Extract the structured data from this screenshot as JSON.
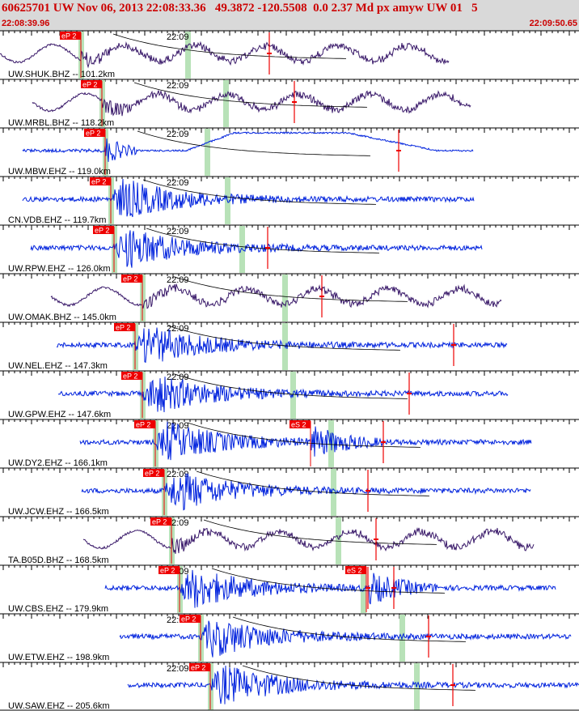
{
  "header": {
    "title": "60625701 UW Nov 06, 2013 22:08:33.36   49.3872 -120.5508  0.0 2.37 Md px amyw UW 01   5",
    "start_time": "22:08:39.96",
    "end_time": "22:09:50.65"
  },
  "colors": {
    "header_bg": "#d9d9d9",
    "header_text": "#cc0000",
    "trace_blue": "#0022dd",
    "trace_purple": "#3a1a6a",
    "pick_box": "#ee0000",
    "marker_green": "#b8e2b8",
    "pick_line": "#ee0000",
    "curve": "#000000"
  },
  "chart_data": {
    "type": "seismogram",
    "time_start": "22:08:39.96",
    "time_end": "22:09:50.65",
    "minute_label": "22:09",
    "grid": true,
    "traces": [
      {
        "label": "UW.SHUK.BHZ -- 101.2km",
        "color": "purple",
        "style": "wave",
        "data_start": 0,
        "data_end": 555,
        "p_pick": "eP 2",
        "p_time": 100,
        "green": [
          100,
          232
        ],
        "red_marks": [
          333
        ],
        "s_pick": null,
        "s_time": null
      },
      {
        "label": "UW.MRBL.BHZ -- 118.2km",
        "color": "purple",
        "style": "wave",
        "data_start": 40,
        "data_end": 582,
        "p_pick": "eP 2",
        "p_time": 126,
        "green": [
          126,
          279
        ],
        "red_marks": [
          364
        ],
        "s_pick": null,
        "s_time": null
      },
      {
        "label": "UW.MBW.EHZ -- 119.0km",
        "color": "blue",
        "style": "drift",
        "data_start": 28,
        "data_end": 585,
        "p_pick": "eP 2",
        "p_time": 130,
        "green": [
          130,
          256
        ],
        "red_marks": [
          493
        ],
        "s_pick": null,
        "s_time": null
      },
      {
        "label": "CN.VDB.EHZ -- 119.7km",
        "color": "blue",
        "style": "burst",
        "data_start": 28,
        "data_end": 586,
        "p_pick": "eP 2",
        "p_time": 137,
        "green": [
          137,
          281
        ],
        "red_marks": [],
        "s_pick": null,
        "s_time": null
      },
      {
        "label": "UW.RPW.EHZ -- 126.0km",
        "color": "blue",
        "style": "burst",
        "data_start": 38,
        "data_end": 596,
        "p_pick": "eP 2",
        "p_time": 141,
        "green": [
          141,
          299
        ],
        "red_marks": [
          331
        ],
        "s_pick": null,
        "s_time": null
      },
      {
        "label": "UW.OMAK.BHZ -- 145.0km",
        "color": "purple",
        "style": "wave",
        "data_start": 63,
        "data_end": 620,
        "p_pick": "eP 2",
        "p_time": 176,
        "green": [
          176,
          352
        ],
        "red_marks": [
          398
        ],
        "s_pick": null,
        "s_time": null
      },
      {
        "label": "UW.NEL.EHZ -- 147.3km",
        "color": "blue",
        "style": "burst",
        "data_start": 70,
        "data_end": 627,
        "p_pick": "eP 2",
        "p_time": 167,
        "green": [
          167,
          352
        ],
        "red_marks": [
          561
        ],
        "s_pick": null,
        "s_time": null
      },
      {
        "label": "UW.GPW.EHZ -- 147.6km",
        "color": "blue",
        "style": "burst",
        "data_start": 72,
        "data_end": 628,
        "p_pick": "eP 2",
        "p_time": 176,
        "green": [
          176,
          362
        ],
        "red_marks": [
          506
        ],
        "s_pick": null,
        "s_time": null
      },
      {
        "label": "UW.DY2.EHZ -- 166.1km",
        "color": "blue",
        "style": "burst2",
        "data_start": 99,
        "data_end": 657,
        "p_pick": "eP 2",
        "p_time": 192,
        "green": [
          192,
          409
        ],
        "red_marks": [
          474
        ],
        "s_pick": "eS 2",
        "s_time": 384
      },
      {
        "label": "UW.JCW.EHZ -- 166.5km",
        "color": "blue",
        "style": "burst",
        "data_start": 101,
        "data_end": 656,
        "p_pick": "eP 2",
        "p_time": 203,
        "green": [
          203,
          412
        ],
        "red_marks": [
          455
        ],
        "s_pick": null,
        "s_time": null
      },
      {
        "label": "TA.B05D.BHZ -- 168.5km",
        "color": "purple",
        "style": "wave",
        "data_start": 103,
        "data_end": 660,
        "p_pick": "eP 2",
        "p_time": 212,
        "green": [
          212,
          418
        ],
        "red_marks": [
          465
        ],
        "s_pick": null,
        "s_time": null
      },
      {
        "label": "UW.CBS.EHZ -- 179.9km",
        "color": "blue",
        "style": "burst2",
        "data_start": 130,
        "data_end": 687,
        "p_pick": "eP 2",
        "p_time": 222,
        "green": [
          222,
          449
        ],
        "red_marks": [
          455,
          487
        ],
        "s_pick": "eS 2",
        "s_time": 453
      },
      {
        "label": "UW.ETW.EHZ -- 198.9km",
        "color": "blue",
        "style": "burst",
        "data_start": 148,
        "data_end": 706,
        "p_pick": "eP 2",
        "p_time": 248,
        "green": [
          248,
          497
        ],
        "red_marks": [
          530
        ],
        "s_pick": null,
        "s_time": null
      },
      {
        "label": "UW.SAW.EHZ -- 205.6km",
        "color": "blue",
        "style": "burst",
        "data_start": 158,
        "data_end": 716,
        "p_pick": "eP 2",
        "p_time": 260,
        "green": [
          260,
          515
        ],
        "red_marks": [
          560
        ],
        "s_pick": null,
        "s_time": null
      }
    ]
  }
}
